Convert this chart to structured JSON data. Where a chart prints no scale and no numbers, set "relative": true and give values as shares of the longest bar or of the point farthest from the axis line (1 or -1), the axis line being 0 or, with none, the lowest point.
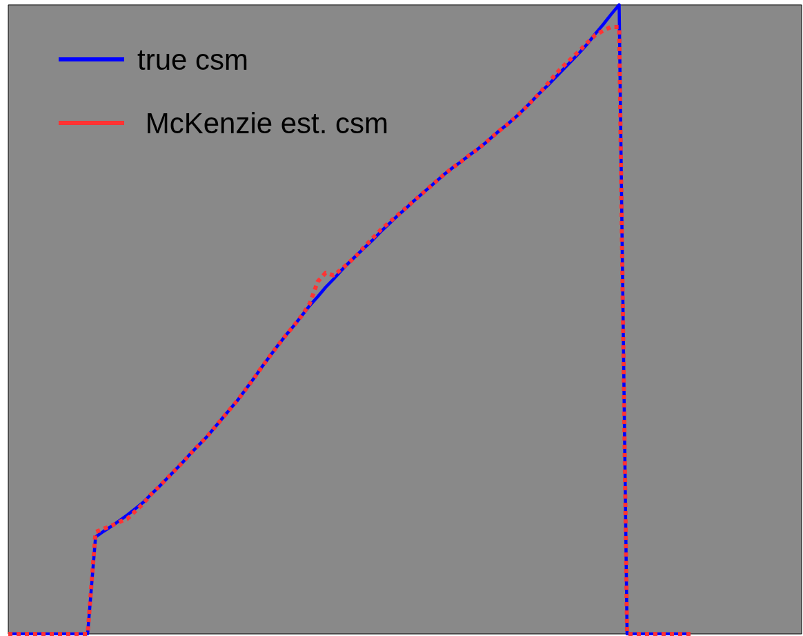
{
  "chart_data": {
    "type": "line",
    "relative": true,
    "tick_labels": false,
    "grid": false,
    "legend": "top left",
    "marker": "none",
    "categories": [
      null,
      null,
      null,
      null,
      null,
      null,
      null,
      null,
      null,
      null,
      null,
      null,
      null,
      null,
      null,
      null,
      null,
      null,
      null,
      null,
      null,
      null,
      null,
      null,
      null,
      null,
      null,
      null,
      null,
      null,
      null,
      null,
      null,
      null,
      null,
      null,
      null,
      null,
      null,
      null,
      null,
      null,
      null,
      null,
      null,
      null,
      null,
      null,
      null,
      null,
      null,
      null,
      null,
      null,
      null,
      null,
      null,
      null,
      null,
      null,
      null,
      null,
      null,
      null,
      null,
      null,
      null,
      null,
      null,
      null,
      null,
      null,
      null,
      null,
      null,
      null,
      null,
      null,
      null,
      null,
      null,
      null,
      null,
      null,
      null,
      null,
      null,
      null,
      null,
      null,
      null,
      null,
      null,
      null,
      null,
      null,
      null,
      null,
      null,
      null,
      null
    ],
    "series": [
      {
        "name": "true csm",
        "color": "#0000ff",
        "line_style": "solid",
        "values": [
          0,
          0,
          0,
          0,
          0,
          0,
          0,
          0,
          0,
          0,
          0,
          0.154,
          0.163,
          0.171,
          0.18,
          0.189,
          0.199,
          0.209,
          0.222,
          0.234,
          0.247,
          0.26,
          0.273,
          0.287,
          0.3,
          0.313,
          0.328,
          0.343,
          0.358,
          0.373,
          0.39,
          0.407,
          0.425,
          0.442,
          0.459,
          0.475,
          0.49,
          0.506,
          0.522,
          0.536,
          0.551,
          0.564,
          0.578,
          0.591,
          0.603,
          0.615,
          0.627,
          0.64,
          0.652,
          0.664,
          0.675,
          0.687,
          0.698,
          0.709,
          0.72,
          0.731,
          0.741,
          0.75,
          0.76,
          0.769,
          0.779,
          0.79,
          0.801,
          0.811,
          0.822,
          0.834,
          0.847,
          0.86,
          0.872,
          0.885,
          0.898,
          0.911,
          0.924,
          0.938,
          0.954,
          0.969,
          0.985,
          1,
          0,
          0,
          0,
          0,
          0,
          0,
          0,
          0,
          0,
          null,
          null,
          null,
          null,
          null,
          null,
          null,
          null,
          null,
          null,
          null,
          null,
          null,
          null
        ]
      },
      {
        "name": " McKenzie est. csm",
        "color": "#ff3333",
        "line_style": "dashed",
        "values": [
          0,
          0,
          0,
          0,
          0,
          0,
          0,
          0,
          0,
          0,
          0,
          0.162,
          0.167,
          0.172,
          0.178,
          0.183,
          0.195,
          0.207,
          0.222,
          0.234,
          0.247,
          0.26,
          0.273,
          0.287,
          0.3,
          0.313,
          0.328,
          0.343,
          0.358,
          0.373,
          0.39,
          0.407,
          0.425,
          0.442,
          0.459,
          0.475,
          0.49,
          0.506,
          0.525,
          0.56,
          0.574,
          0.57,
          0.58,
          0.591,
          0.603,
          0.617,
          0.63,
          0.643,
          0.654,
          0.665,
          0.676,
          0.687,
          0.698,
          0.709,
          0.72,
          0.731,
          0.741,
          0.75,
          0.76,
          0.769,
          0.779,
          0.79,
          0.801,
          0.811,
          0.822,
          0.834,
          0.847,
          0.86,
          0.875,
          0.89,
          0.903,
          0.915,
          0.927,
          0.94,
          0.952,
          0.959,
          0.965,
          0.965,
          0,
          0,
          0,
          0,
          0,
          0,
          0,
          0,
          0,
          null,
          null,
          null,
          null,
          null,
          null,
          null,
          null,
          null,
          null,
          null,
          null,
          null,
          null
        ]
      }
    ]
  }
}
